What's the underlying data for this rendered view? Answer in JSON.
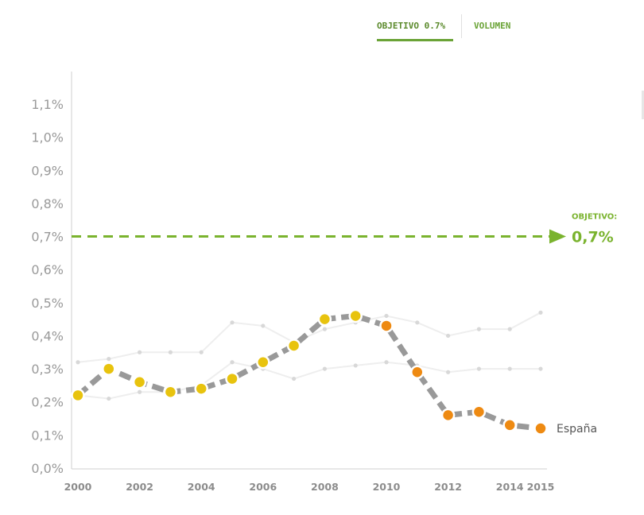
{
  "tabs": [
    {
      "label": "OBJETIVO 0.7%",
      "active": true
    },
    {
      "label": "VOLUMEN",
      "active": false
    }
  ],
  "chart_data": {
    "type": "line",
    "x": [
      2000,
      2001,
      2002,
      2003,
      2004,
      2005,
      2006,
      2007,
      2008,
      2009,
      2010,
      2011,
      2012,
      2013,
      2014,
      2015
    ],
    "x_tick_labels": [
      "2000",
      "2002",
      "2004",
      "2006",
      "2008",
      "2010",
      "2012",
      "2014",
      "2015"
    ],
    "y_tick_labels": [
      "0,0%",
      "0,1%",
      "0,2%",
      "0,3%",
      "0,4%",
      "0,5%",
      "0,6%",
      "0,7%",
      "0,8%",
      "0,9%",
      "1,0%",
      "1,1%"
    ],
    "ylim": [
      0,
      1.1
    ],
    "y_unit": "%",
    "series": [
      {
        "name": "España",
        "color": "#999999",
        "values": [
          0.22,
          0.3,
          0.26,
          0.23,
          0.24,
          0.27,
          0.32,
          0.37,
          0.45,
          0.46,
          0.43,
          0.29,
          0.16,
          0.17,
          0.13,
          0.12
        ]
      },
      {
        "values": [
          0.32,
          0.33,
          0.35,
          0.35,
          0.35,
          0.44,
          0.43,
          0.38,
          0.42,
          0.44,
          0.46,
          0.44,
          0.4,
          0.42,
          0.42,
          0.47
        ],
        "color": "#d8d8d8"
      },
      {
        "values": [
          0.22,
          0.21,
          0.23,
          0.23,
          0.25,
          0.32,
          0.3,
          0.27,
          0.3,
          0.31,
          0.32,
          0.31,
          0.29,
          0.3,
          0.3,
          0.3
        ],
        "color": "#d8d8d8"
      }
    ],
    "target": {
      "value": 0.7,
      "title": "OBJETIVO:",
      "label": "0,7%",
      "color": "#7ab32e"
    },
    "point_colors": {
      "rising": "#e8c30e",
      "falling": "#ee8a12"
    },
    "grid": false,
    "legend": "none"
  }
}
